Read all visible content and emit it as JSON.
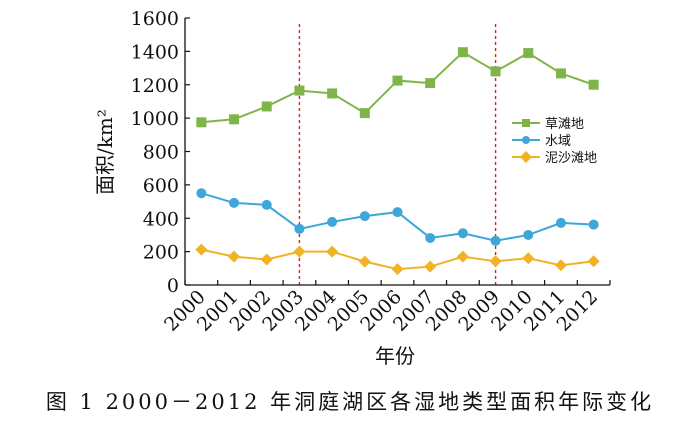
{
  "caption": "图 1   2000－2012 年洞庭湖区各湿地类型面积年际变化",
  "chart_data": {
    "type": "line",
    "categories": [
      "2000",
      "2001",
      "2002",
      "2003",
      "2004",
      "2005",
      "2006",
      "2007",
      "2008",
      "2009",
      "2010",
      "2011",
      "2012"
    ],
    "series": [
      {
        "name": "草滩地",
        "color": "#7fb548",
        "marker": "square",
        "values": [
          975,
          993,
          1070,
          1165,
          1148,
          1030,
          1225,
          1210,
          1395,
          1280,
          1390,
          1268,
          1200
        ]
      },
      {
        "name": "水域",
        "color": "#3ea6d8",
        "marker": "circle",
        "values": [
          550,
          492,
          480,
          336,
          378,
          413,
          437,
          282,
          310,
          265,
          300,
          372,
          362
        ]
      },
      {
        "name": "泥沙滩地",
        "color": "#f0b323",
        "marker": "diamond",
        "values": [
          212,
          170,
          153,
          200,
          200,
          140,
          95,
          110,
          170,
          142,
          160,
          118,
          142
        ]
      }
    ],
    "xlabel": "年份",
    "ylabel": "面积/km²",
    "ylim": [
      0,
      1600
    ],
    "yticks": [
      "0",
      "200",
      "400",
      "600",
      "800",
      "1000",
      "1200",
      "1400",
      "1600"
    ],
    "reference_lines_at": [
      "2003",
      "2009"
    ],
    "reference_line_color": "#d0232a",
    "grid": false,
    "legend_position": "right"
  }
}
